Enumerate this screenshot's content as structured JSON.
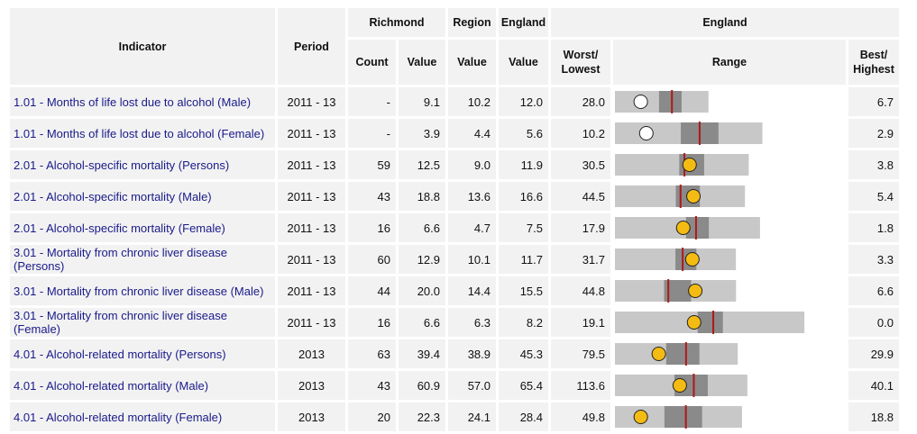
{
  "headers": {
    "indicator": "Indicator",
    "period": "Period",
    "richmond": "Richmond",
    "region": "Region",
    "england": "England",
    "england_range": "England",
    "count": "Count",
    "value": "Value",
    "region_value": "Value",
    "england_value": "Value",
    "worst": "Worst/\nLowest",
    "range": "Range",
    "best": "Best/\nHighest"
  },
  "colors": {
    "bar_light": "#c8c8c8",
    "bar_dark": "#8a8a8a",
    "england_line": "#b01818",
    "marker_yellow": "#f4bb12",
    "marker_white": "#ffffff",
    "link": "#1a1a8a"
  },
  "rows": [
    {
      "indicator": "1.01 - Months of life lost due to alcohol (Male)",
      "period": "2011 - 13",
      "count": "-",
      "value": "9.1",
      "region": "10.2",
      "england": "12.0",
      "worst": "28.0",
      "best": "6.7",
      "marker": "white",
      "r": {
        "min": 6.7,
        "q1": 10.8,
        "q3": 12.9,
        "max": 15.4,
        "local": 9.1,
        "eng": 12.0,
        "lo": 6.7,
        "hi": 28.0
      }
    },
    {
      "indicator": "1.01 - Months of life lost due to alcohol (Female)",
      "period": "2011 - 13",
      "count": "-",
      "value": "3.9",
      "region": "4.4",
      "england": "5.6",
      "worst": "10.2",
      "best": "2.9",
      "marker": "white",
      "r": {
        "min": 2.9,
        "q1": 5.0,
        "q3": 6.2,
        "max": 7.6,
        "local": 3.9,
        "eng": 5.6,
        "lo": 2.9,
        "hi": 10.2
      }
    },
    {
      "indicator": "2.01 - Alcohol-specific mortality (Persons)",
      "period": "2011 - 13",
      "count": "59",
      "value": "12.5",
      "region": "9.0",
      "england": "11.9",
      "worst": "30.5",
      "best": "3.8",
      "marker": "yellow",
      "r": {
        "min": 3.8,
        "q1": 11.3,
        "q3": 14.2,
        "max": 19.4,
        "local": 12.5,
        "eng": 11.9,
        "lo": 3.8,
        "hi": 30.5
      }
    },
    {
      "indicator": "2.01 - Alcohol-specific mortality (Male)",
      "period": "2011 - 13",
      "count": "43",
      "value": "18.8",
      "region": "13.6",
      "england": "16.6",
      "worst": "44.5",
      "best": "5.4",
      "marker": "yellow",
      "r": {
        "min": 5.4,
        "q1": 15.8,
        "q3": 19.9,
        "max": 27.6,
        "local": 18.8,
        "eng": 16.6,
        "lo": 5.4,
        "hi": 44.5
      }
    },
    {
      "indicator": "2.01 - Alcohol-specific mortality (Female)",
      "period": "2011 - 13",
      "count": "16",
      "value": "6.6",
      "region": "4.7",
      "england": "7.5",
      "worst": "17.9",
      "best": "1.8",
      "marker": "yellow",
      "r": {
        "min": 1.8,
        "q1": 6.8,
        "q3": 8.4,
        "max": 12.0,
        "local": 6.6,
        "eng": 7.5,
        "lo": 1.8,
        "hi": 17.9
      }
    },
    {
      "indicator": "3.01 - Mortality from chronic liver disease (Persons)",
      "period": "2011 - 13",
      "count": "60",
      "value": "12.9",
      "region": "10.1",
      "england": "11.7",
      "worst": "31.7",
      "best": "3.3",
      "marker": "yellow",
      "r": {
        "min": 3.3,
        "q1": 10.8,
        "q3": 13.4,
        "max": 18.3,
        "local": 12.9,
        "eng": 11.7,
        "lo": 3.3,
        "hi": 31.7
      }
    },
    {
      "indicator": "3.01 - Mortality from chronic liver disease (Male)",
      "period": "2011 - 13",
      "count": "44",
      "value": "20.0",
      "region": "14.4",
      "england": "15.5",
      "worst": "44.8",
      "best": "6.6",
      "marker": "yellow",
      "r": {
        "min": 6.6,
        "q1": 14.8,
        "q3": 19.3,
        "max": 26.8,
        "local": 20.0,
        "eng": 15.5,
        "lo": 6.6,
        "hi": 44.8
      }
    },
    {
      "indicator": "3.01 - Mortality from chronic liver disease (Female)",
      "period": "2011 - 13",
      "count": "16",
      "value": "6.6",
      "region": "6.3",
      "england": "8.2",
      "worst": "19.1",
      "best": "0.0",
      "marker": "yellow",
      "r": {
        "min": 0.0,
        "q1": 6.9,
        "q3": 9.0,
        "max": 15.8,
        "local": 6.6,
        "eng": 8.2,
        "lo": 0.0,
        "hi": 19.1
      }
    },
    {
      "indicator": "4.01 - Alcohol-related mortality (Persons)",
      "period": "2013",
      "count": "63",
      "value": "39.4",
      "region": "38.9",
      "england": "45.3",
      "worst": "79.5",
      "best": "29.9",
      "marker": "yellow",
      "r": {
        "min": 29.9,
        "q1": 41.0,
        "q3": 48.2,
        "max": 56.5,
        "local": 39.4,
        "eng": 45.3,
        "lo": 29.9,
        "hi": 79.5
      }
    },
    {
      "indicator": "4.01 - Alcohol-related mortality (Male)",
      "period": "2013",
      "count": "43",
      "value": "60.9",
      "region": "57.0",
      "england": "65.4",
      "worst": "113.6",
      "best": "40.1",
      "marker": "yellow",
      "r": {
        "min": 40.1,
        "q1": 59.2,
        "q3": 69.9,
        "max": 82.6,
        "local": 60.9,
        "eng": 65.4,
        "lo": 40.1,
        "hi": 113.6
      }
    },
    {
      "indicator": "4.01 - Alcohol-related mortality (Female)",
      "period": "2013",
      "count": "20",
      "value": "22.3",
      "region": "24.1",
      "england": "28.4",
      "worst": "49.8",
      "best": "18.8",
      "marker": "yellow",
      "r": {
        "min": 18.8,
        "q1": 25.5,
        "q3": 30.6,
        "max": 36.0,
        "local": 22.3,
        "eng": 28.4,
        "lo": 18.8,
        "hi": 49.8
      }
    }
  ]
}
